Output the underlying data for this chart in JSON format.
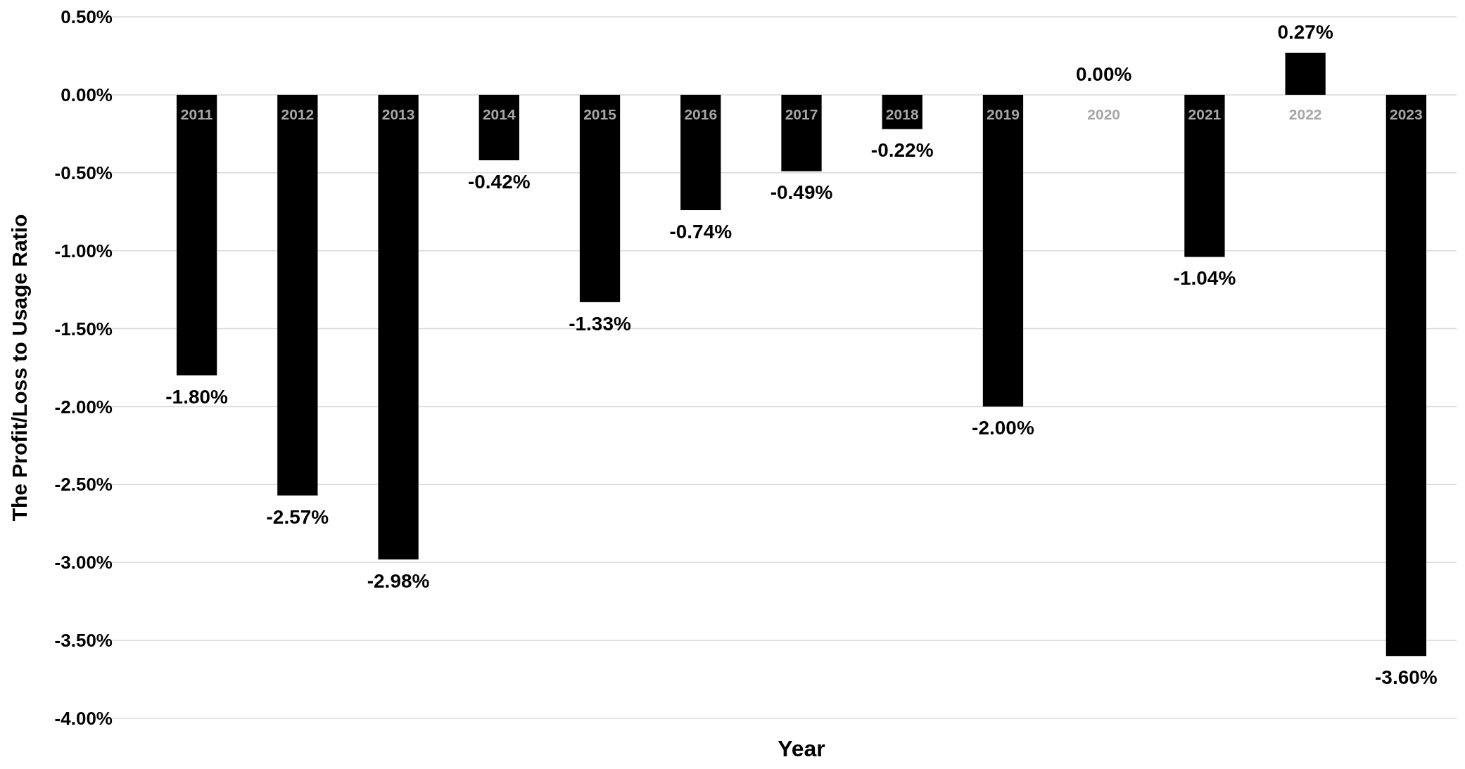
{
  "chart_data": {
    "type": "bar",
    "xlabel": "Year",
    "ylabel": "The Profit/Loss to Usage Ratio",
    "categories": [
      "2011",
      "2012",
      "2013",
      "2014",
      "2015",
      "2016",
      "2017",
      "2018",
      "2019",
      "2020",
      "2021",
      "2022",
      "2023"
    ],
    "values": [
      -1.8,
      -2.57,
      -2.98,
      -0.42,
      -1.33,
      -0.74,
      -0.49,
      -0.22,
      -2.0,
      0.0,
      -1.04,
      0.27,
      -3.6
    ],
    "value_labels": [
      "-1.80%",
      "-2.57%",
      "-2.98%",
      "-0.42%",
      "-1.33%",
      "-0.74%",
      "-0.49%",
      "-0.22%",
      "-2.00%",
      "0.00%",
      "-1.04%",
      "0.27%",
      "-3.60%"
    ],
    "color": "#000000",
    "ylim": [
      -4,
      0.5
    ],
    "yticks": [
      {
        "value": 0.5,
        "label": "0.50%"
      },
      {
        "value": 0,
        "label": "0.00%"
      },
      {
        "value": -0.5,
        "label": "-0.50%"
      },
      {
        "value": -1,
        "label": "-1.00%"
      },
      {
        "value": -1.5,
        "label": "-1.50%"
      },
      {
        "value": -2,
        "label": "-2.00%"
      },
      {
        "value": -2.5,
        "label": "-2.50%"
      },
      {
        "value": -3,
        "label": "-3.00%"
      },
      {
        "value": -3.5,
        "label": "-3.50%"
      },
      {
        "value": -4,
        "label": "-4.00%"
      }
    ],
    "grid": "y"
  }
}
